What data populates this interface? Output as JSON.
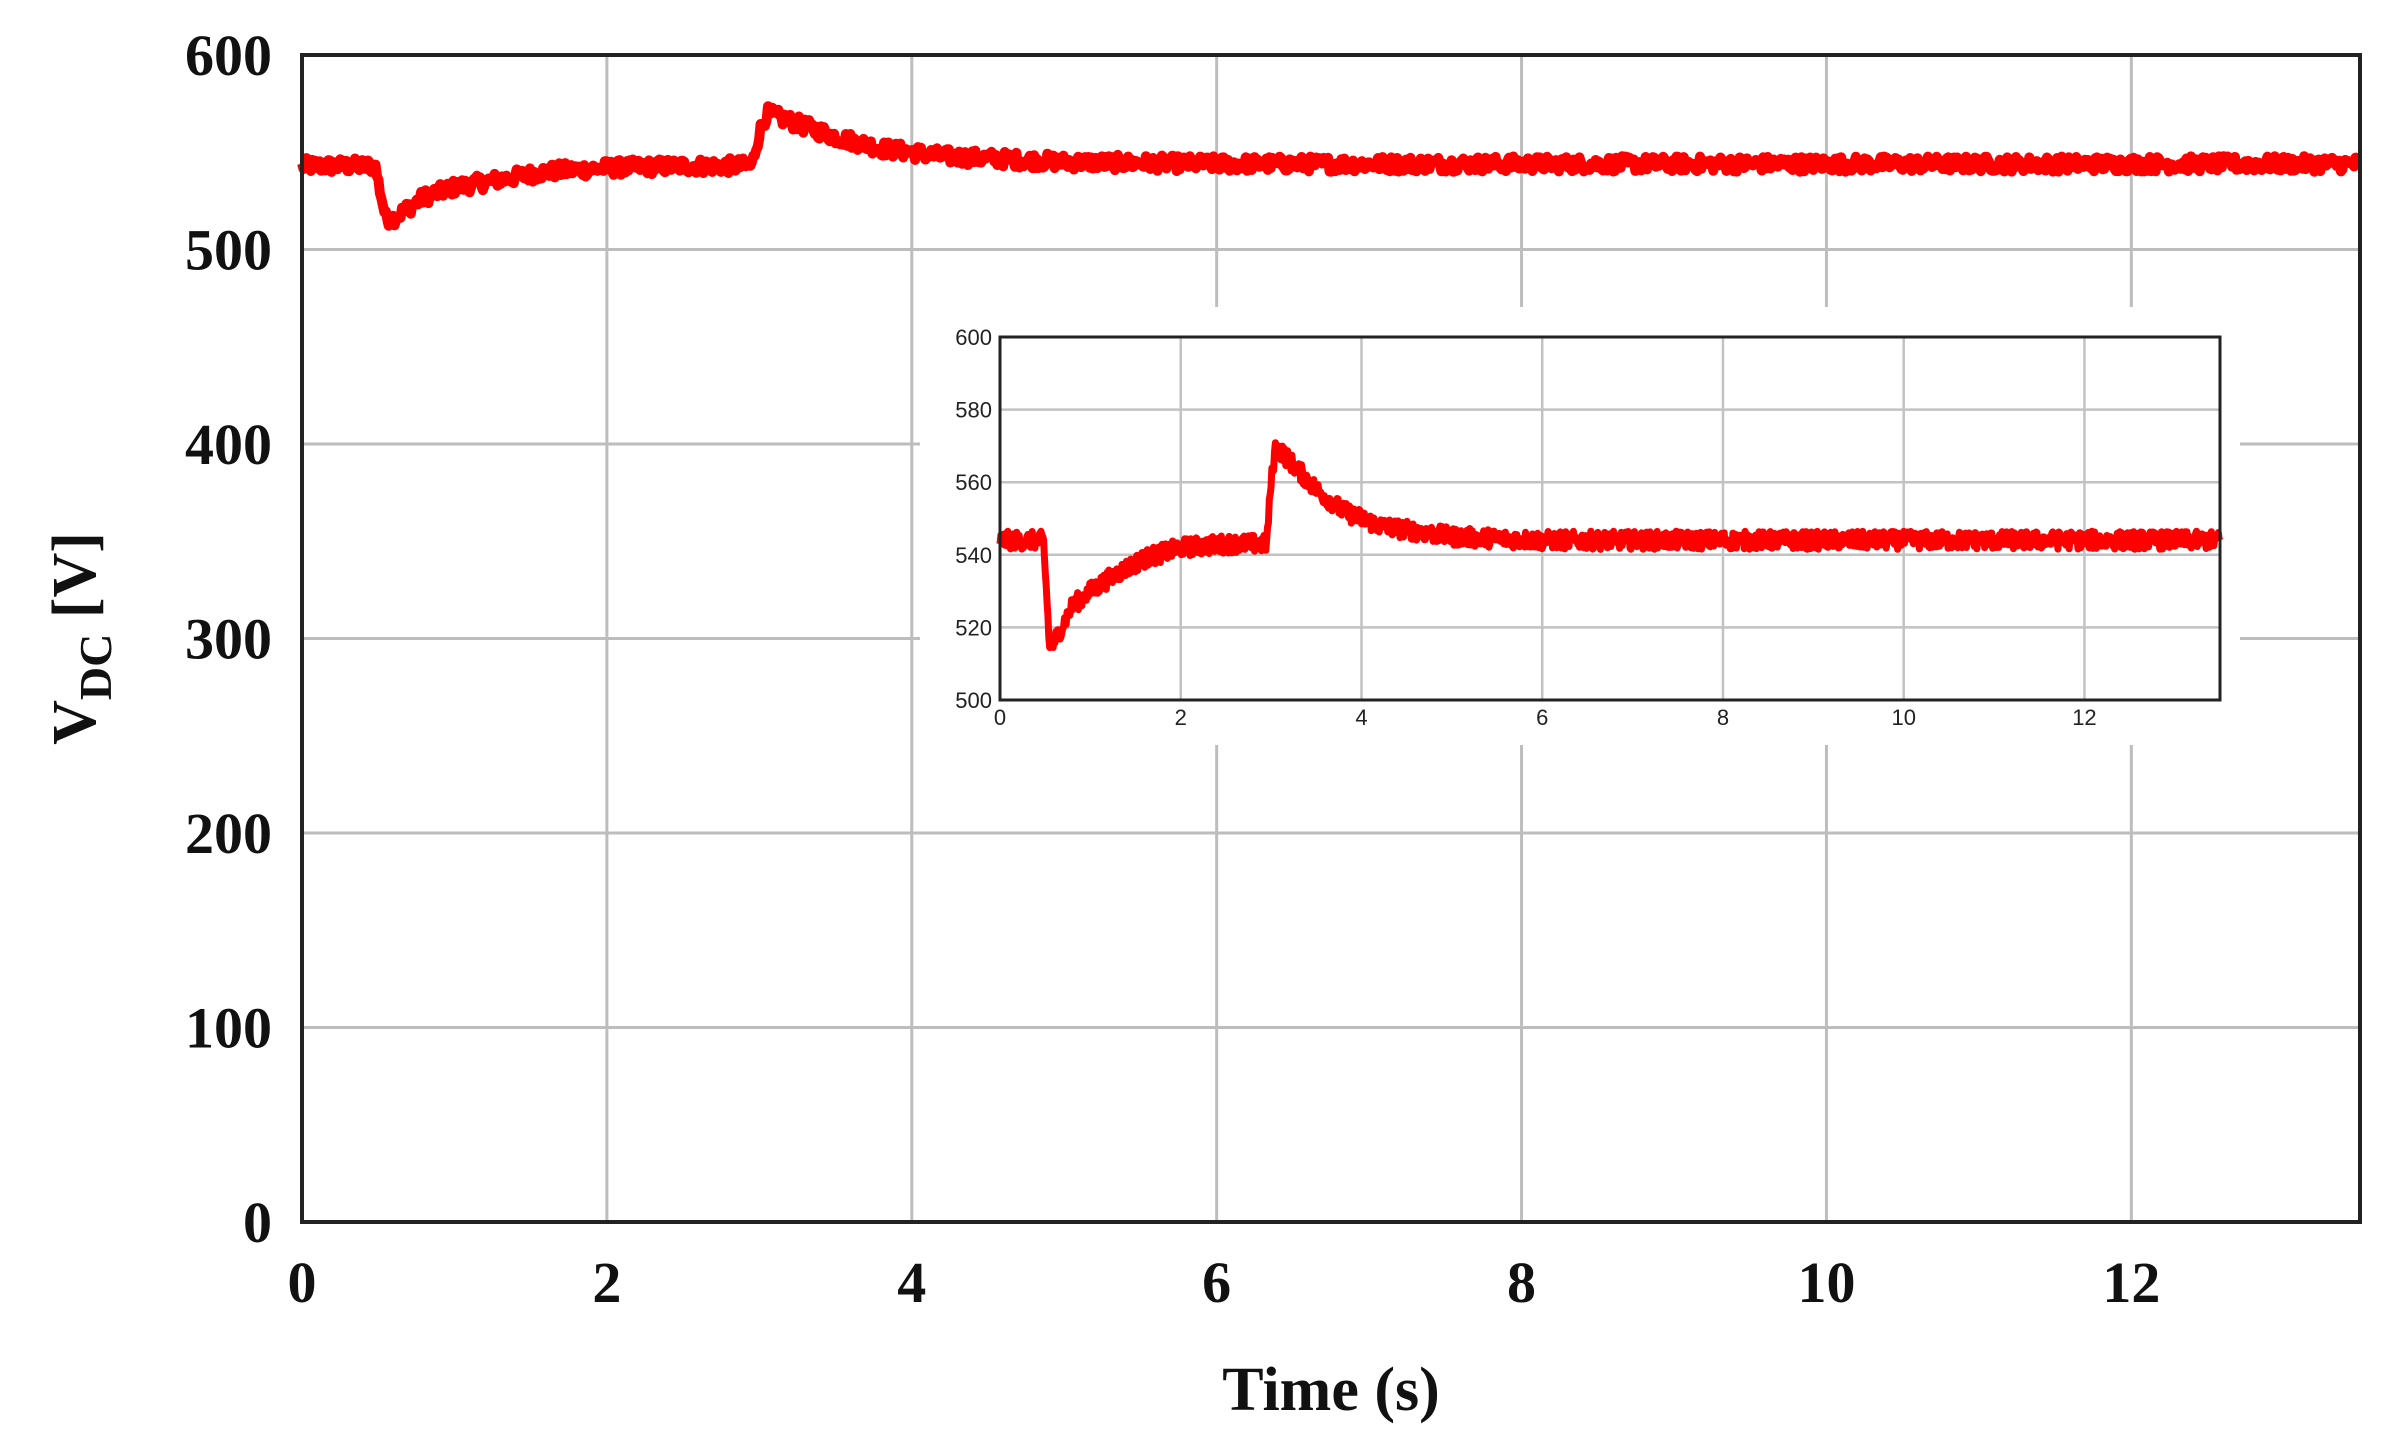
{
  "chart_data": [
    {
      "id": "main",
      "type": "line",
      "xlabel": "Time (s)",
      "ylabel_main": "V",
      "ylabel_sub": "DC",
      "ylabel_unit": " [V]",
      "xlim": [
        0,
        13.5
      ],
      "ylim": [
        0,
        600
      ],
      "xticks": [
        0,
        2,
        4,
        6,
        8,
        10,
        12
      ],
      "yticks": [
        0,
        100,
        200,
        300,
        400,
        500,
        600
      ],
      "xtick_labels": [
        "0",
        "2",
        "4",
        "6",
        "8",
        "10",
        "12"
      ],
      "ytick_labels": [
        "0",
        "100",
        "200",
        "300",
        "400",
        "500",
        "600"
      ],
      "grid": true,
      "series": [
        {
          "color": "#ff0000",
          "noise": 4,
          "x": [
            0,
            0.48,
            0.5,
            0.55,
            0.6,
            0.8,
            1.0,
            1.3,
            1.6,
            2.0,
            2.5,
            2.95,
            3.0,
            3.05,
            3.2,
            3.5,
            3.8,
            4.2,
            5.0,
            6.0,
            8.0,
            10.0,
            12.0,
            13.5
          ],
          "y": [
            543,
            543,
            535,
            516,
            516,
            527,
            532,
            536,
            540,
            542,
            543,
            543,
            560,
            570,
            566,
            558,
            552,
            548,
            545,
            544,
            544,
            544,
            544,
            544
          ]
        }
      ]
    },
    {
      "id": "inset",
      "type": "line",
      "xlim": [
        0,
        13.5
      ],
      "ylim": [
        500,
        600
      ],
      "xticks": [
        0,
        2,
        4,
        6,
        8,
        10,
        12
      ],
      "yticks": [
        500,
        520,
        540,
        560,
        580,
        600
      ],
      "xtick_labels": [
        "0",
        "2",
        "4",
        "6",
        "8",
        "10",
        "12"
      ],
      "ytick_labels": [
        "500",
        "520",
        "540",
        "560",
        "580",
        "600"
      ],
      "grid": true,
      "series": [
        {
          "color": "#ff0000",
          "noise": 2.5,
          "x": [
            0,
            0.48,
            0.5,
            0.55,
            0.6,
            0.8,
            1.0,
            1.3,
            1.6,
            2.0,
            2.5,
            2.95,
            3.0,
            3.05,
            3.2,
            3.5,
            3.8,
            4.2,
            5.0,
            6.0,
            8.0,
            10.0,
            12.0,
            13.5
          ],
          "y": [
            544,
            544,
            536,
            514,
            516,
            526,
            530,
            535,
            539,
            542,
            543,
            543,
            560,
            570,
            566,
            558,
            552,
            548,
            545,
            544,
            544,
            544,
            544,
            544
          ]
        }
      ]
    }
  ]
}
